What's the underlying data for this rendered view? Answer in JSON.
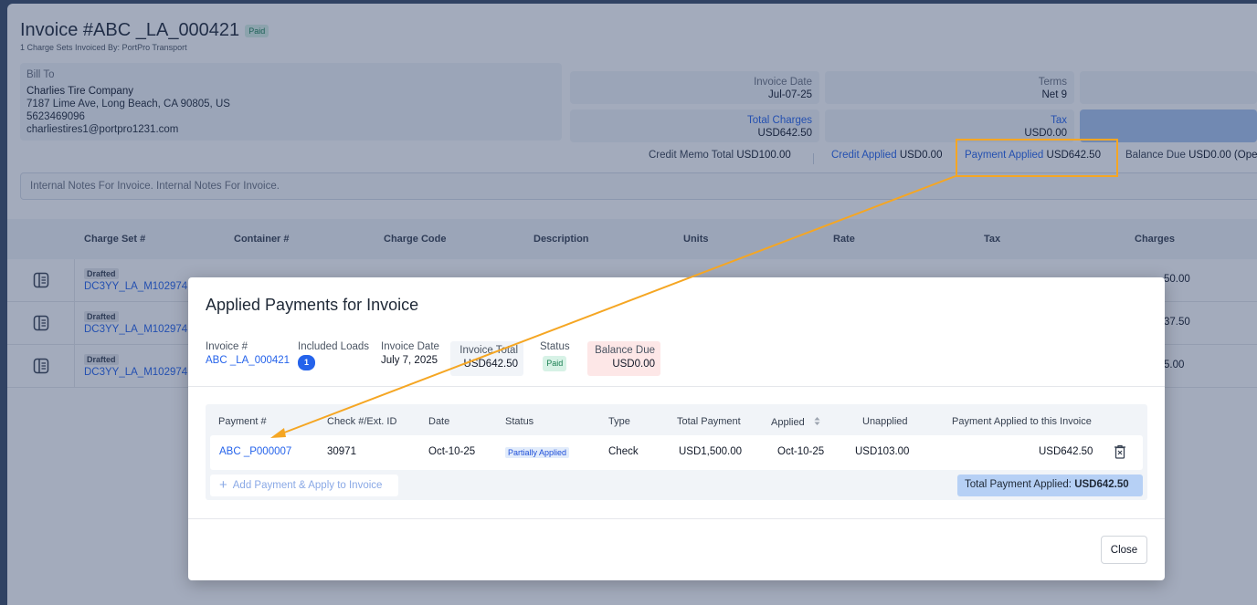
{
  "invoice": {
    "title": "Invoice #ABC _LA_000421",
    "status_badge": "Paid",
    "subtitle": "1 Charge Sets Invoiced By: PortPro Transport",
    "bill_to": {
      "label": "Bill To",
      "name": "Charlies Tire Company",
      "address": "7187 Lime Ave, Long Beach, CA 90805, US",
      "phone": "5623469096",
      "email": "charliestires1@portpro1231.com"
    },
    "invoice_date": {
      "label": "Invoice Date",
      "value": "Jul-07-25"
    },
    "terms": {
      "label": "Terms",
      "value": "Net 9"
    },
    "total_charges": {
      "label": "Total Charges",
      "value": "USD642.50"
    },
    "tax": {
      "label": "Tax",
      "value": "USD0.00"
    },
    "credit_memo_total": {
      "label": "Credit Memo Total",
      "value": "USD100.00"
    },
    "credit_applied": {
      "label": "Credit Applied",
      "value": "USD0.00"
    },
    "payment_applied": {
      "label": "Payment Applied",
      "value": "USD642.50"
    },
    "balance_due": {
      "label": "Balance Due",
      "value": "USD0.00 (Ope"
    },
    "notes": "Internal Notes For Invoice. Internal Notes For Invoice."
  },
  "charges_table": {
    "headers": [
      "Charge Set #",
      "Container #",
      "Charge Code",
      "Description",
      "Units",
      "Rate",
      "Tax",
      "Charges"
    ],
    "rows": [
      {
        "status": "Drafted",
        "charge_set": "DC3YY_LA_M102974",
        "charges": "50.00"
      },
      {
        "status": "Drafted",
        "charge_set": "DC3YY_LA_M102974",
        "charges": "37.50"
      },
      {
        "status": "Drafted",
        "charge_set": "DC3YY_LA_M102974",
        "charges": "5.00"
      }
    ]
  },
  "modal": {
    "title": "Applied Payments for Invoice",
    "info": {
      "invoice_label": "Invoice #",
      "invoice_value": "ABC _LA_000421",
      "loads_label": "Included Loads",
      "loads_value": "1",
      "date_label": "Invoice Date",
      "date_value": "July 7, 2025",
      "total_label": "Invoice Total",
      "total_value": "USD642.50",
      "status_label": "Status",
      "status_value": "Paid",
      "balance_label": "Balance Due",
      "balance_value": "USD0.00"
    },
    "table": {
      "headers": {
        "payment": "Payment #",
        "check": "Check #/Ext. ID",
        "date": "Date",
        "status": "Status",
        "type": "Type",
        "total": "Total Payment",
        "applied": "Applied",
        "unapplied": "Unapplied",
        "applied_invoice": "Payment Applied to this Invoice"
      },
      "row": {
        "payment": "ABC _P000007",
        "check": "30971",
        "date": "Oct-10-25",
        "status": "Partially Applied",
        "type": "Check",
        "total": "USD1,500.00",
        "applied": "Oct-10-25",
        "unapplied": "USD103.00",
        "applied_invoice": "USD642.50"
      }
    },
    "add_label": "Add Payment & Apply to Invoice",
    "total_applied_label": "Total Payment Applied:",
    "total_applied_value": "USD642.50",
    "close_label": "Close"
  },
  "colors": {
    "accent": "#2563eb",
    "highlight": "#f5a623"
  }
}
